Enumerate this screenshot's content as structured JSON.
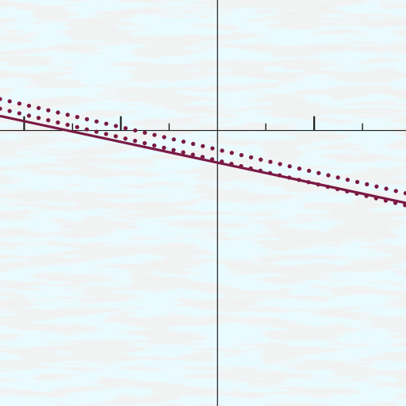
{
  "chart_data": {
    "type": "line",
    "title": "",
    "xlabel": "",
    "ylabel": "",
    "xlim": [
      -4.5,
      3.9
    ],
    "ylim": [
      -5.7,
      2.7
    ],
    "grid": false,
    "legend": "none",
    "x_major_ticks": [
      -4,
      -2,
      2
    ],
    "x_minor_ticks": [
      -3,
      -1,
      1,
      3
    ],
    "series": [
      {
        "style": "solid",
        "color": "#7a1a45",
        "x": [
          -4.5,
          3.9
        ],
        "y": [
          0.3,
          -1.5
        ]
      },
      {
        "style": "dotted",
        "color": "#7a1a45",
        "x": [
          -4.5,
          3.9
        ],
        "y": [
          0.65,
          -1.3
        ]
      },
      {
        "style": "dotted",
        "color": "#7a1a45",
        "x": [
          -4.5,
          3.9
        ],
        "y": [
          0.45,
          -1.55
        ]
      }
    ],
    "colors": {
      "background": "#e9fbff",
      "speckle": "#e5e1df",
      "axis": "#1c1c1c"
    }
  }
}
